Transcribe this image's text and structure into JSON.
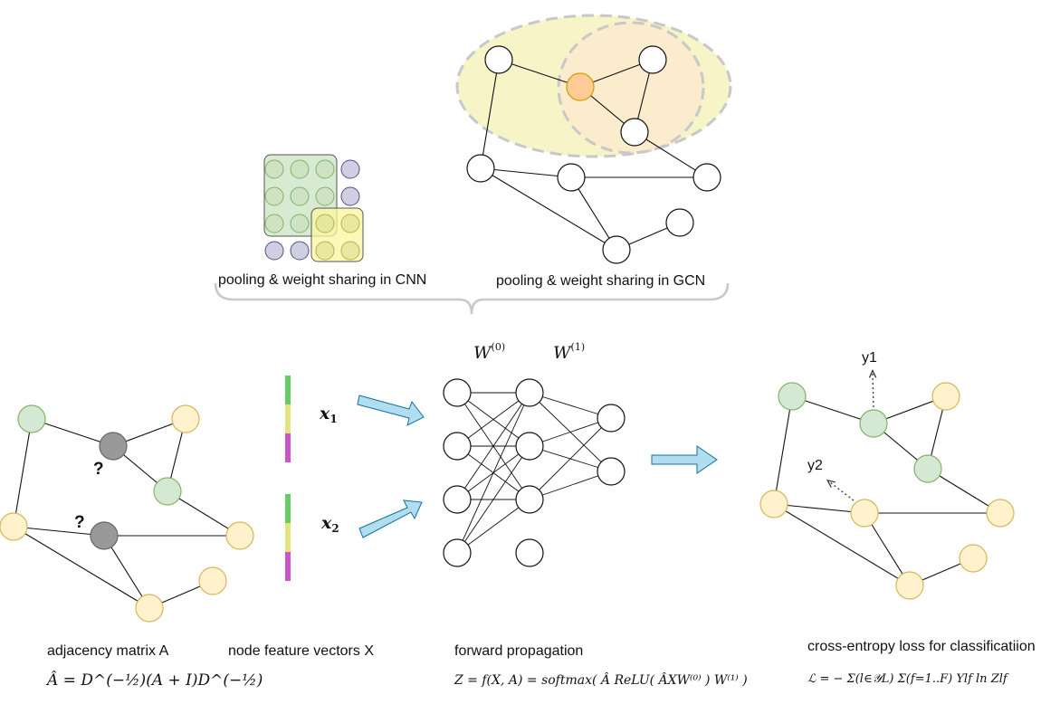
{
  "labels": {
    "cnn_caption": "pooling & weight sharing in CNN",
    "gcn_caption": "pooling & weight sharing in GCN",
    "adjacency_caption": "adjacency matrix A",
    "features_caption": "node feature vectors X",
    "forward_caption": "forward propagation",
    "loss_caption": "cross-entropy loss for classificatiion",
    "unknown_mark_1": "?",
    "unknown_mark_2": "?",
    "output_y1": "y1",
    "output_y2": "y2"
  },
  "math": {
    "x1": "x",
    "x1_sub": "1",
    "x2": "x",
    "x2_sub": "2",
    "w0": "W",
    "w0_sup": "(0)",
    "w1": "W",
    "w1_sup": "(1)",
    "adjacency_formula": "Â = D^(−½)(A + I)D^(−½)",
    "propagation_formula": "Z = f(X, A) = softmax( Â ReLU( ÂXW⁽⁰⁾ ) W⁽¹⁾ )",
    "loss_formula": "ℒ = − Σ(l∈𝒴L) Σ(f=1..F) Ylf ln Zlf"
  },
  "colors": {
    "green_node": "#d5e8d4",
    "green_stroke": "#82b366",
    "yellow_node": "#fff2cc",
    "yellow_stroke": "#d6b656",
    "gray_node": "#999999",
    "orange_node": "#ffcc99",
    "purple_node": "#d0cee2",
    "arrow_blue": "#b1ddf0",
    "feature_green": "#66cc66",
    "feature_yellow": "#e5e580",
    "feature_magenta": "#cc55cc"
  }
}
